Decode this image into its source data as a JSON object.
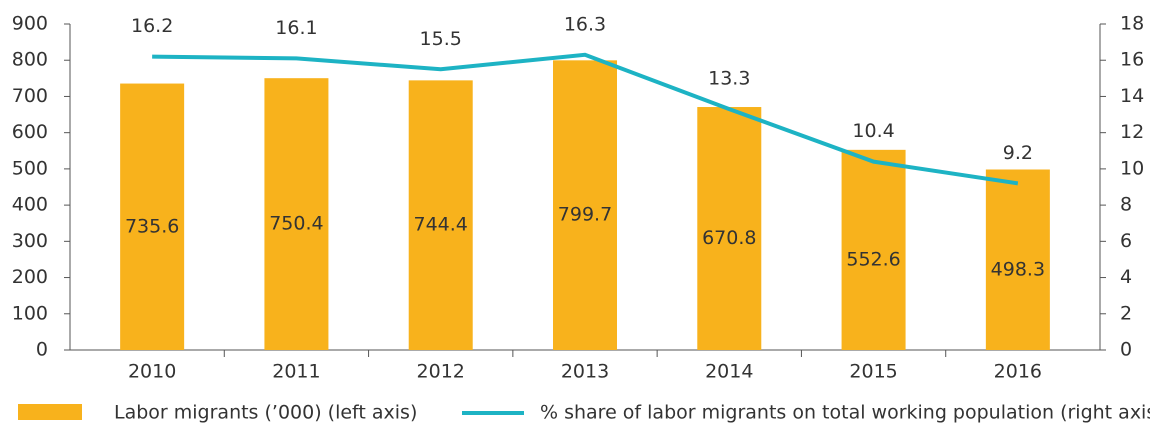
{
  "chart_data": {
    "type": "combo",
    "categories": [
      "2010",
      "2011",
      "2012",
      "2013",
      "2014",
      "2015",
      "2016"
    ],
    "series": [
      {
        "name": "Labor migrants (’000) (left axis)",
        "type": "bar",
        "color": "#f8b21c",
        "values": [
          735.6,
          750.4,
          744.4,
          799.7,
          670.8,
          552.6,
          498.3
        ]
      },
      {
        "name": "% share of labor migrants on total working population (right axis)",
        "type": "line",
        "axis": "y2",
        "color": "#1db3c4",
        "values": [
          16.2,
          16.1,
          15.5,
          16.3,
          13.3,
          10.4,
          9.2
        ]
      }
    ],
    "ylim": [
      0,
      900
    ],
    "yticks": [
      0,
      100,
      200,
      300,
      400,
      500,
      600,
      700,
      800,
      900
    ],
    "y2lim": [
      0,
      18
    ],
    "y2ticks": [
      0,
      2,
      4,
      6,
      8,
      10,
      12,
      14,
      16,
      18
    ]
  }
}
